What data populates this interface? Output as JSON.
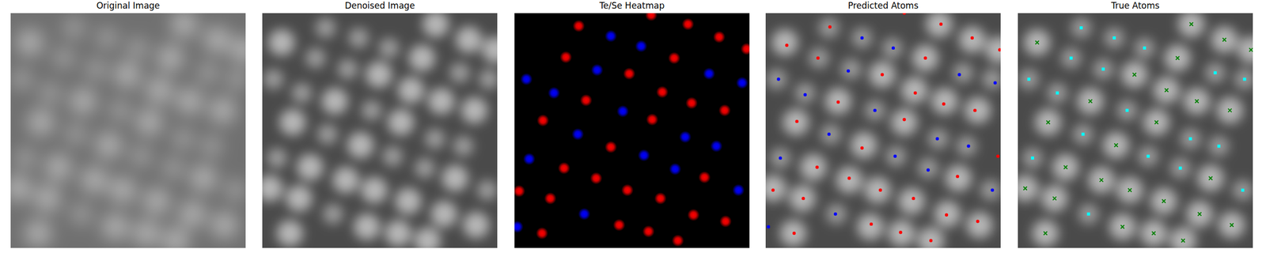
{
  "chart_data": [
    {
      "type": "image",
      "title": "Original Image",
      "xlim": [
        0,
        256
      ],
      "ylim": [
        256,
        0
      ],
      "tick_labels": false
    },
    {
      "type": "image",
      "title": "Denoised Image",
      "xlim": [
        0,
        256
      ],
      "ylim": [
        256,
        0
      ],
      "tick_labels": false
    },
    {
      "type": "heatmap",
      "title": "Te/Se Heatmap",
      "xlim": [
        0,
        256
      ],
      "ylim": [
        256,
        0
      ],
      "tick_labels": false,
      "series": [
        {
          "color": "#ff0000",
          "x": [
            70,
            149,
            189,
            223,
            253,
            56,
            174,
            125,
            78,
            161,
            193,
            229,
            31,
            150,
            105,
            54,
            89,
            207,
            123,
            5,
            39,
            159,
            195,
            230,
            114,
            146,
            178,
            30
          ],
          "values": [
            14,
            2,
            12,
            26,
            39,
            48,
            49,
            66,
            95,
            86,
            98,
            106,
            117,
            116,
            146,
            169,
            180,
            179,
            193,
            194,
            202,
            202,
            220,
            227,
            231,
            238,
            248,
            240
          ]
        },
        {
          "color": "#0000ff",
          "x": [
            105,
            138,
            90,
            13,
            43,
            212,
            248,
            118,
            69,
            186,
            220,
            141,
            16,
            175,
            244,
            76,
            3
          ],
          "values": [
            25,
            36,
            62,
            72,
            87,
            66,
            76,
            107,
            132,
            135,
            145,
            155,
            159,
            170,
            193,
            219,
            233
          ]
        }
      ]
    },
    {
      "type": "scatter",
      "title": "Predicted Atoms",
      "xlim": [
        0,
        256
      ],
      "ylim": [
        256,
        0
      ],
      "tick_labels": false,
      "series": [
        {
          "color": "red",
          "marker": "circle",
          "x": [
            151,
            191,
            225,
            255,
            70,
            23,
            57,
            174,
            127,
            163,
            194,
            228,
            79,
            34,
            151,
            105,
            253,
            56,
            91,
            209,
            125,
            8,
            41,
            161,
            197,
            231,
            115,
            147,
            180,
            31
          ],
          "values": [
            0,
            12,
            27,
            40,
            15,
            35,
            49,
            49,
            67,
            87,
            99,
            106,
            97,
            118,
            116,
            147,
            156,
            168,
            180,
            178,
            193,
            193,
            202,
            202,
            220,
            227,
            230,
            239,
            248,
            240
          ]
        },
        {
          "color": "blue",
          "marker": "circle",
          "x": [
            105,
            139,
            90,
            14,
            43,
            119,
            211,
            250,
            69,
            187,
            221,
            141,
            16,
            177,
            247,
            76,
            3
          ],
          "values": [
            27,
            38,
            63,
            72,
            89,
            106,
            67,
            76,
            132,
            137,
            145,
            156,
            158,
            171,
            193,
            219,
            233
          ]
        }
      ]
    },
    {
      "type": "scatter",
      "title": "True Atoms",
      "xlim": [
        0,
        256
      ],
      "ylim": [
        256,
        0
      ],
      "tick_labels": false,
      "series": [
        {
          "color": "green",
          "marker": "x",
          "x": [
            189,
            225,
            254,
            21,
            174,
            127,
            162,
            195,
            79,
            231,
            33,
            151,
            107,
            52,
            91,
            210,
            8,
            40,
            122,
            159,
            198,
            233,
            114,
            30,
            148,
            180
          ],
          "values": [
            12,
            29,
            40,
            32,
            49,
            67,
            84,
            96,
            96,
            106,
            119,
            119,
            144,
            168,
            182,
            180,
            191,
            202,
            193,
            205,
            219,
            231,
            233,
            240,
            240,
            248
          ]
        },
        {
          "color": "cyan",
          "marker": "square",
          "x": [
            69,
            105,
            138,
            58,
            93,
            12,
            43,
            119,
            215,
            247,
            71,
            188,
            219,
            142,
            16,
            177,
            245,
            77
          ],
          "values": [
            16,
            27,
            38,
            49,
            61,
            72,
            87,
            106,
            65,
            72,
            132,
            137,
            145,
            156,
            158,
            169,
            193,
            219
          ]
        }
      ]
    }
  ]
}
